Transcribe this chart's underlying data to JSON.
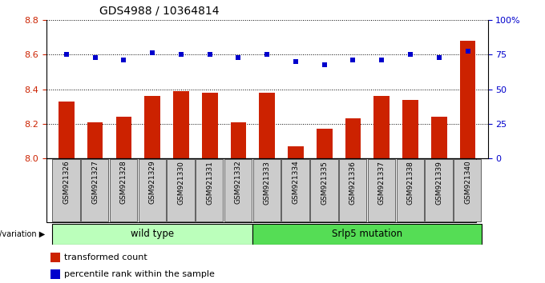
{
  "title": "GDS4988 / 10364814",
  "samples": [
    "GSM921326",
    "GSM921327",
    "GSM921328",
    "GSM921329",
    "GSM921330",
    "GSM921331",
    "GSM921332",
    "GSM921333",
    "GSM921334",
    "GSM921335",
    "GSM921336",
    "GSM921337",
    "GSM921338",
    "GSM921339",
    "GSM921340"
  ],
  "red_values": [
    8.33,
    8.21,
    8.24,
    8.36,
    8.39,
    8.38,
    8.21,
    8.38,
    8.07,
    8.17,
    8.23,
    8.36,
    8.34,
    8.24,
    8.68
  ],
  "blue_values": [
    8.6,
    8.58,
    8.57,
    8.61,
    8.6,
    8.6,
    8.58,
    8.6,
    8.56,
    8.54,
    8.57,
    8.57,
    8.6,
    8.58,
    8.62
  ],
  "ymin": 8.0,
  "ymax": 8.8,
  "yticks_left": [
    8.0,
    8.2,
    8.4,
    8.6,
    8.8
  ],
  "yticks_right": [
    0,
    25,
    50,
    75,
    100
  ],
  "yright_labels": [
    "0",
    "25",
    "50",
    "75",
    "100%"
  ],
  "group1_label": "wild type",
  "group2_label": "Srlp5 mutation",
  "group1_count": 7,
  "group2_count": 8,
  "genotype_label": "genotype/variation",
  "legend_red": "transformed count",
  "legend_blue": "percentile rank within the sample",
  "bar_color": "#cc2200",
  "dot_color": "#0000cc",
  "group1_bg": "#bbffbb",
  "group2_bg": "#55dd55",
  "bar_width": 0.55,
  "axis_color_left": "#cc2200",
  "axis_color_right": "#0000cc",
  "tick_label_bg": "#cccccc"
}
